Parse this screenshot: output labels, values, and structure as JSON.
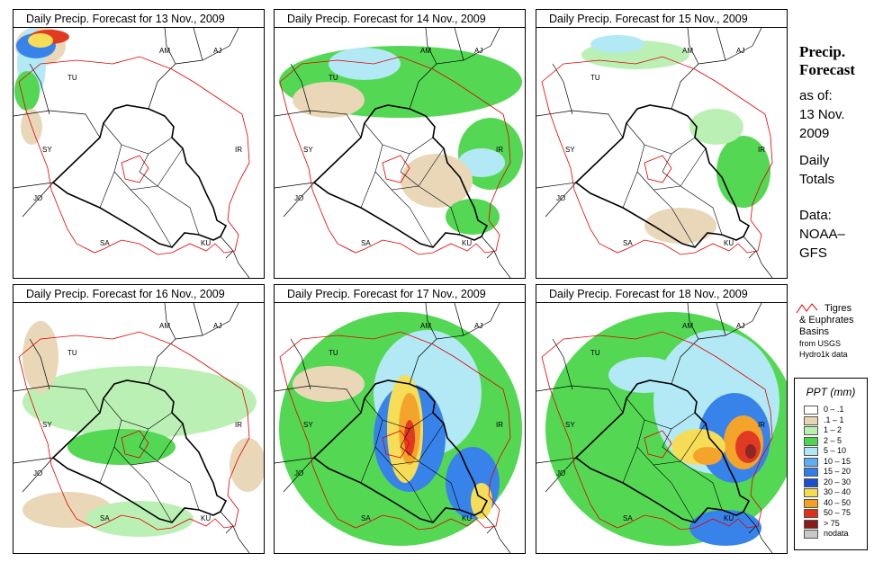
{
  "panels": [
    {
      "title": "Daily Precip. Forecast for  13 Nov., 2009"
    },
    {
      "title": "Daily Precip. Forecast for  14 Nov., 2009"
    },
    {
      "title": "Daily Precip. Forecast for  15 Nov., 2009"
    },
    {
      "title": "Daily Precip. Forecast for  16 Nov., 2009"
    },
    {
      "title": "Daily Precip. Forecast for  17 Nov., 2009"
    },
    {
      "title": "Daily Precip. Forecast for  18 Nov., 2009"
    }
  ],
  "country_labels": [
    "AM",
    "AJ",
    "TU",
    "SY",
    "IR",
    "JO",
    "SA",
    "KU"
  ],
  "sidebar": {
    "title_line1": "Precip.",
    "title_line2": "Forecast",
    "asof": "as of:",
    "date_line1": "13 Nov.",
    "date_line2": "2009",
    "daily_line1": "Daily",
    "daily_line2": "Totals",
    "data_line1": "Data:",
    "data_line2": "NOAA–",
    "data_line3": "GFS"
  },
  "basin_legend": {
    "line1": "Tigres",
    "line2": "& Euphrates",
    "line3": "Basins",
    "line4": "from USGS",
    "line5": "Hydro1k data"
  },
  "ppt_legend": {
    "title": "PPT (mm)",
    "items": [
      {
        "label": "0 – .1",
        "color": "#ffffff"
      },
      {
        "label": ".1 – 1",
        "color": "#e8d5b5"
      },
      {
        "label": "1 – 2",
        "color": "#b8f0b0"
      },
      {
        "label": "2 – 5",
        "color": "#4bd64b"
      },
      {
        "label": "5 – 10",
        "color": "#aee8f5"
      },
      {
        "label": "10 – 15",
        "color": "#5aaef2"
      },
      {
        "label": "15 – 20",
        "color": "#2e7de8"
      },
      {
        "label": "20 – 30",
        "color": "#1a4fd0"
      },
      {
        "label": "30 – 40",
        "color": "#f5dc50"
      },
      {
        "label": "40 – 50",
        "color": "#f5a020"
      },
      {
        "label": "50 – 75",
        "color": "#e03018"
      },
      {
        "label": "> 75",
        "color": "#8b1a1a"
      },
      {
        "label": "nodata",
        "color": "#c8c8c8"
      }
    ]
  },
  "colors": {
    "basin": "#e00000",
    "border": "#000000"
  }
}
